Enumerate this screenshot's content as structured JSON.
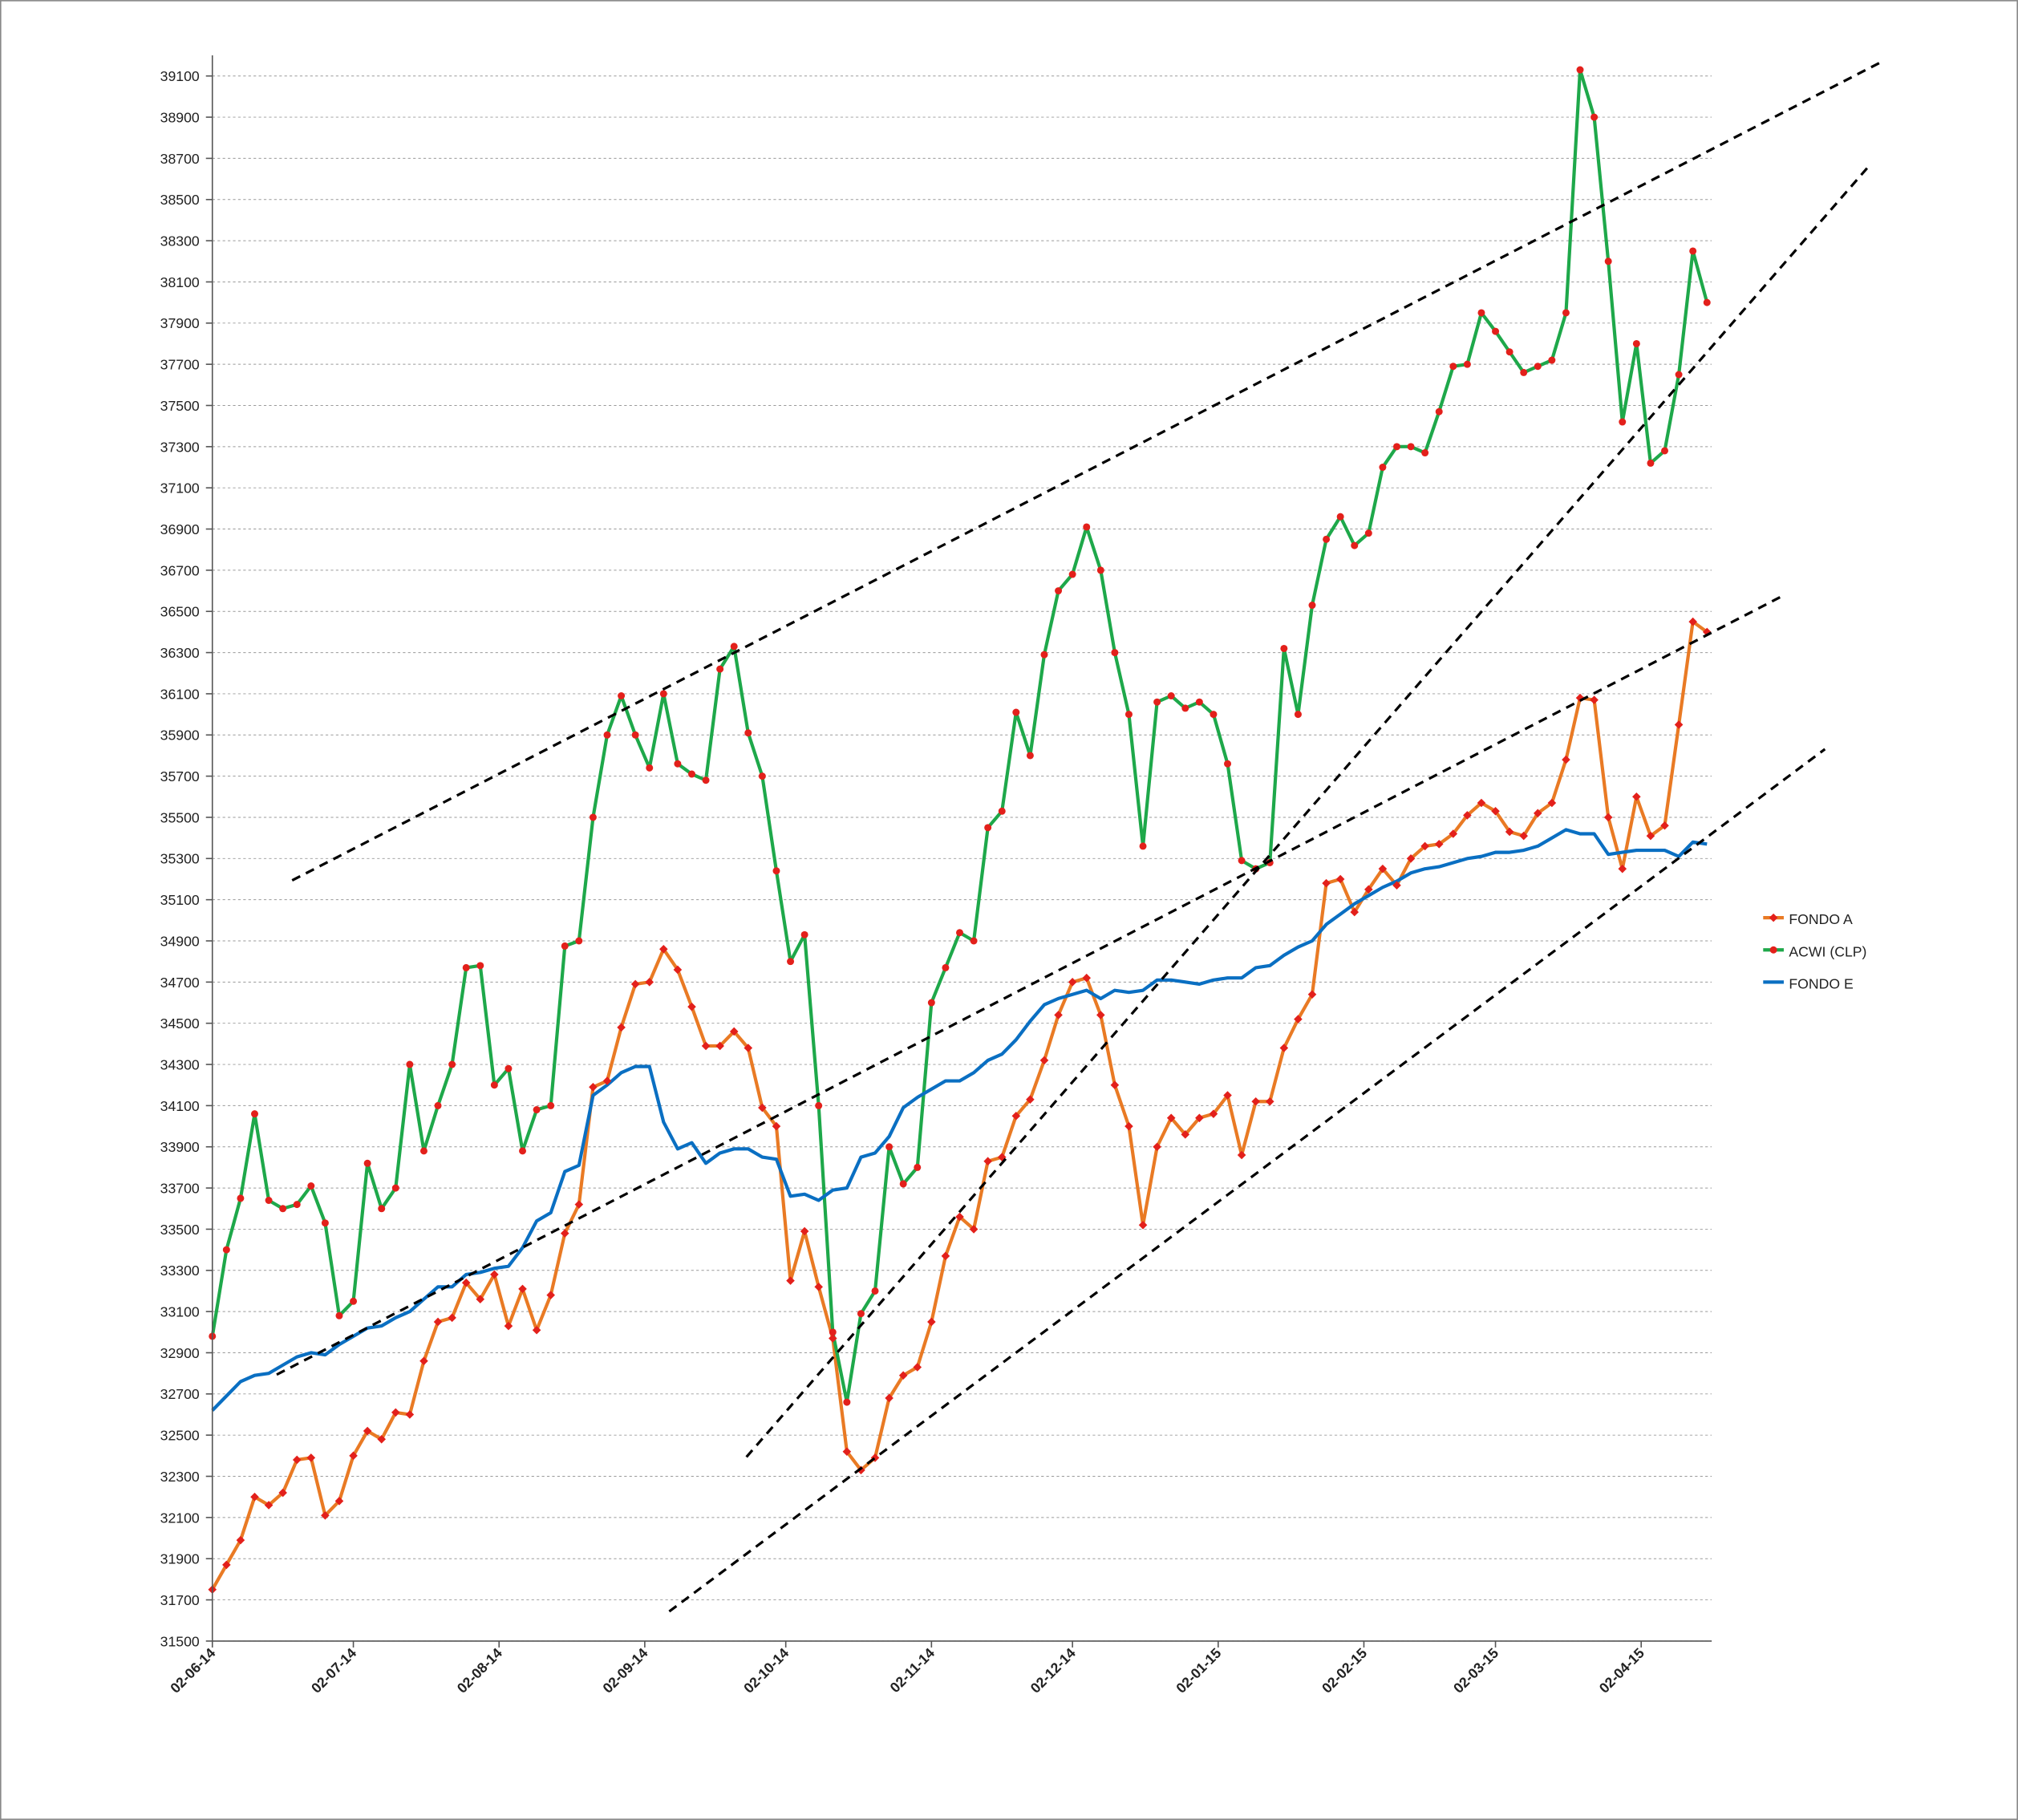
{
  "chart_data": {
    "type": "line",
    "x": [
      "2014-06-02",
      "2014-06-05",
      "2014-06-08",
      "2014-06-11",
      "2014-06-14",
      "2014-06-17",
      "2014-06-20",
      "2014-06-23",
      "2014-06-26",
      "2014-06-29",
      "2014-07-02",
      "2014-07-05",
      "2014-07-08",
      "2014-07-11",
      "2014-07-14",
      "2014-07-17",
      "2014-07-20",
      "2014-07-23",
      "2014-07-26",
      "2014-07-29",
      "2014-08-01",
      "2014-08-04",
      "2014-08-07",
      "2014-08-10",
      "2014-08-13",
      "2014-08-16",
      "2014-08-19",
      "2014-08-22",
      "2014-08-25",
      "2014-08-28",
      "2014-08-31",
      "2014-09-03",
      "2014-09-06",
      "2014-09-09",
      "2014-09-12",
      "2014-09-15",
      "2014-09-18",
      "2014-09-21",
      "2014-09-24",
      "2014-09-27",
      "2014-09-30",
      "2014-10-03",
      "2014-10-06",
      "2014-10-09",
      "2014-10-12",
      "2014-10-15",
      "2014-10-18",
      "2014-10-21",
      "2014-10-24",
      "2014-10-27",
      "2014-10-30",
      "2014-11-02",
      "2014-11-05",
      "2014-11-08",
      "2014-11-11",
      "2014-11-14",
      "2014-11-17",
      "2014-11-20",
      "2014-11-23",
      "2014-11-26",
      "2014-11-29",
      "2014-12-02",
      "2014-12-05",
      "2014-12-08",
      "2014-12-11",
      "2014-12-14",
      "2014-12-17",
      "2014-12-20",
      "2014-12-23",
      "2014-12-26",
      "2014-12-29",
      "2015-01-01",
      "2015-01-04",
      "2015-01-07",
      "2015-01-10",
      "2015-01-13",
      "2015-01-16",
      "2015-01-19",
      "2015-01-22",
      "2015-01-25",
      "2015-01-28",
      "2015-01-31",
      "2015-02-03",
      "2015-02-06",
      "2015-02-09",
      "2015-02-12",
      "2015-02-15",
      "2015-02-18",
      "2015-02-21",
      "2015-02-24",
      "2015-02-27",
      "2015-03-02",
      "2015-03-05",
      "2015-03-08",
      "2015-03-11",
      "2015-03-14",
      "2015-03-17",
      "2015-03-20",
      "2015-03-23",
      "2015-03-26",
      "2015-03-29",
      "2015-04-01",
      "2015-04-04",
      "2015-04-07",
      "2015-04-10",
      "2015-04-13",
      "2015-04-16"
    ],
    "series": [
      {
        "name": "FONDO A",
        "color": "#e97a24",
        "marker": "diamond",
        "values": [
          31750,
          31870,
          31990,
          32200,
          32160,
          32220,
          32380,
          32390,
          32110,
          32180,
          32400,
          32520,
          32480,
          32610,
          32600,
          32860,
          33050,
          33070,
          33240,
          33160,
          33280,
          33030,
          33210,
          33010,
          33180,
          33480,
          33620,
          34190,
          34220,
          34480,
          34690,
          34700,
          34860,
          34760,
          34580,
          34390,
          34390,
          34460,
          34380,
          34090,
          34000,
          33250,
          33490,
          33220,
          32970,
          32420,
          32330,
          32390,
          32680,
          32790,
          32830,
          33050,
          33370,
          33560,
          33500,
          33830,
          33850,
          34050,
          34130,
          34320,
          34540,
          34700,
          34720,
          34540,
          34200,
          34000,
          33520,
          33900,
          34040,
          33960,
          34040,
          34060,
          34150,
          33860,
          34120,
          34120,
          34380,
          34520,
          34640,
          35180,
          35200,
          35040,
          35150,
          35250,
          35170,
          35300,
          35360,
          35370,
          35420,
          35510,
          35570,
          35530,
          35430,
          35410,
          35520,
          35570,
          35780,
          36080,
          36070,
          35500,
          35250,
          35600,
          35410,
          35460,
          35950,
          36450,
          36400
        ]
      },
      {
        "name": "ACWI (CLP)",
        "color": "#1ea84a",
        "marker": "circle",
        "values": [
          32980,
          33400,
          33650,
          34060,
          33640,
          33600,
          33620,
          33710,
          33530,
          33080,
          33150,
          33820,
          33600,
          33700,
          34300,
          33880,
          34100,
          34300,
          34770,
          34780,
          34200,
          34280,
          33880,
          34080,
          34100,
          34875,
          34900,
          35500,
          35900,
          36090,
          35900,
          35740,
          36100,
          35760,
          35710,
          35680,
          36220,
          36330,
          35910,
          35700,
          35240,
          34800,
          34930,
          34100,
          33000,
          32660,
          33090,
          33200,
          33900,
          33720,
          33800,
          34600,
          34770,
          34940,
          34900,
          35450,
          35530,
          36010,
          35800,
          36290,
          36600,
          36680,
          36910,
          36700,
          36300,
          36000,
          35360,
          36060,
          36090,
          36030,
          36060,
          36000,
          35760,
          35290,
          35250,
          35280,
          36320,
          36000,
          36530,
          36850,
          36960,
          36820,
          36880,
          37200,
          37300,
          37300,
          37270,
          37470,
          37690,
          37700,
          37950,
          37860,
          37760,
          37660,
          37690,
          37720,
          37950,
          39130,
          38900,
          38200,
          37420,
          37800,
          37220,
          37280,
          37650,
          38250,
          38000
        ]
      },
      {
        "name": "FONDO E",
        "color": "#0a6fc2",
        "values": [
          32620,
          32690,
          32760,
          32790,
          32800,
          32840,
          32880,
          32900,
          32890,
          32940,
          32980,
          33020,
          33030,
          33070,
          33100,
          33160,
          33220,
          33220,
          33280,
          33290,
          33310,
          33320,
          33410,
          33540,
          33580,
          33780,
          33810,
          34150,
          34200,
          34260,
          34290,
          34290,
          34020,
          33890,
          33920,
          33820,
          33870,
          33890,
          33890,
          33850,
          33840,
          33660,
          33670,
          33640,
          33690,
          33700,
          33850,
          33870,
          33950,
          34090,
          34140,
          34180,
          34220,
          34220,
          34260,
          34320,
          34350,
          34420,
          34510,
          34590,
          34620,
          34640,
          34660,
          34620,
          34660,
          34650,
          34660,
          34710,
          34710,
          34700,
          34690,
          34710,
          34720,
          34720,
          34770,
          34780,
          34830,
          34870,
          34900,
          34980,
          35030,
          35080,
          35120,
          35160,
          35190,
          35230,
          35250,
          35260,
          35280,
          35300,
          35310,
          35330,
          35330,
          35340,
          35360,
          35400,
          35440,
          35420,
          35420,
          35320,
          35330,
          35340,
          35340,
          35340,
          35310,
          35380,
          35370
        ]
      }
    ],
    "marker_color": "#e3201b",
    "xlim": [
      "2014-06-02",
      "2015-04-17"
    ],
    "xticks": [
      {
        "value": "2014-06-02",
        "label": "02-06-14"
      },
      {
        "value": "2014-07-02",
        "label": "02-07-14"
      },
      {
        "value": "2014-08-02",
        "label": "02-08-14"
      },
      {
        "value": "2014-09-02",
        "label": "02-09-14"
      },
      {
        "value": "2014-10-02",
        "label": "02-10-14"
      },
      {
        "value": "2014-11-02",
        "label": "02-11-14"
      },
      {
        "value": "2014-12-02",
        "label": "02-12-14"
      },
      {
        "value": "2015-01-02",
        "label": "02-01-15"
      },
      {
        "value": "2015-02-02",
        "label": "02-02-15"
      },
      {
        "value": "2015-03-02",
        "label": "02-03-15"
      },
      {
        "value": "2015-04-02",
        "label": "02-04-15"
      }
    ],
    "ylim": [
      31500,
      39200
    ],
    "yticks": [
      31500,
      31700,
      31900,
      32100,
      32300,
      32500,
      32700,
      32900,
      33100,
      33300,
      33500,
      33700,
      33900,
      34100,
      34300,
      34500,
      34700,
      34900,
      35100,
      35300,
      35500,
      35700,
      35900,
      36100,
      36300,
      36500,
      36700,
      36900,
      37100,
      37300,
      37500,
      37700,
      37900,
      38100,
      38300,
      38500,
      38700,
      38900,
      39100
    ],
    "grid": true,
    "legend": "right"
  }
}
